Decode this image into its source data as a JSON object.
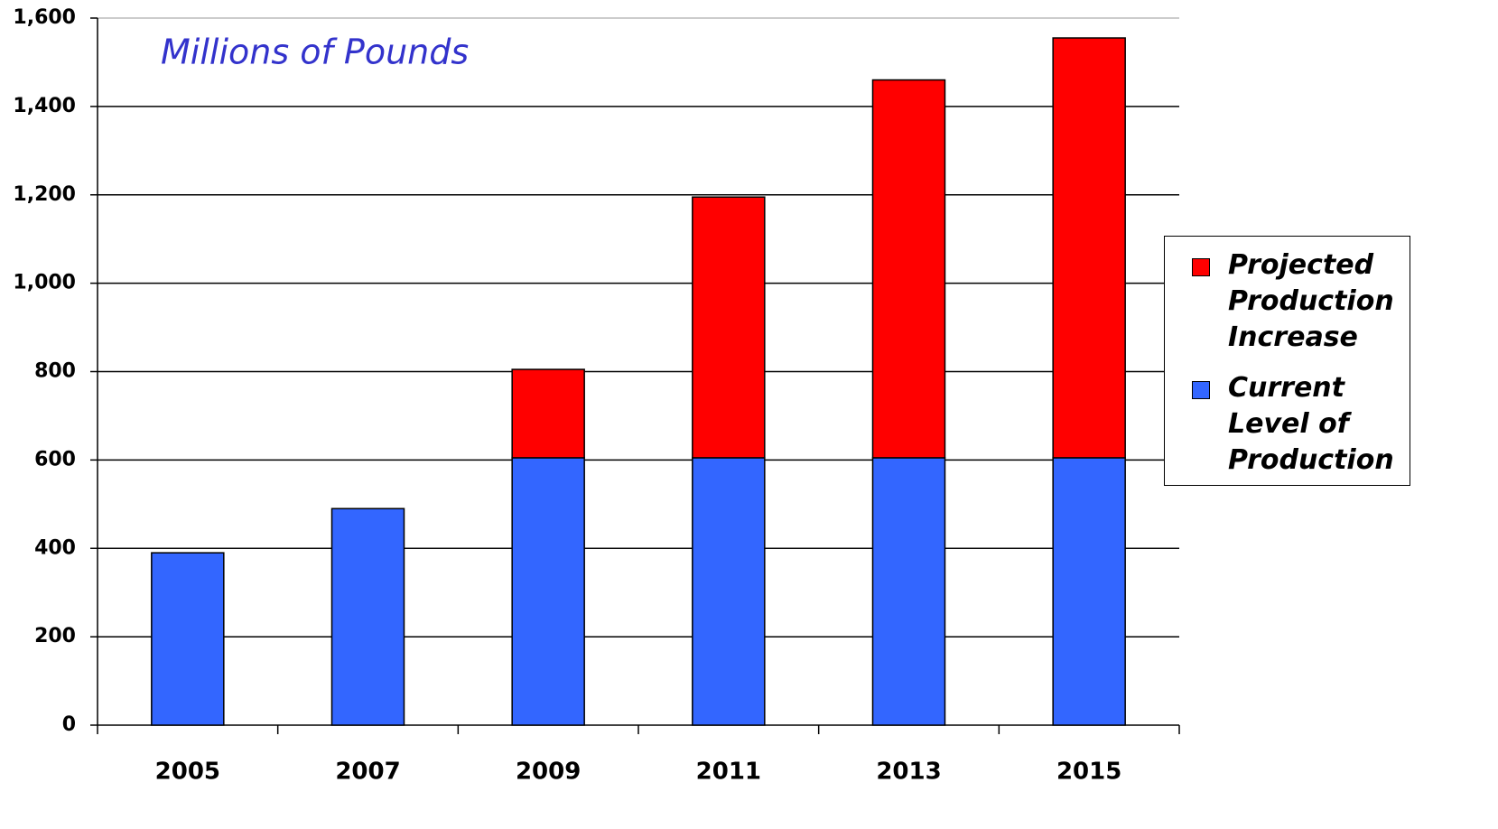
{
  "chart_data": {
    "type": "stacked-bar",
    "annotation": "Millions of Pounds",
    "categories": [
      "2005",
      "2007",
      "2009",
      "2011",
      "2013",
      "2015"
    ],
    "series": [
      {
        "name": "Current Level of Production",
        "color": "#3366ff",
        "values": [
          390,
          490,
          605,
          605,
          605,
          605
        ]
      },
      {
        "name": "Projected Production Increase",
        "color": "#ff0000",
        "values": [
          null,
          null,
          200,
          590,
          855,
          950
        ]
      }
    ],
    "ylim": [
      0,
      1600
    ],
    "yticks": [
      0,
      200,
      400,
      600,
      800,
      {
        "value": 1000,
        "label": "1,000"
      },
      {
        "value": 1200,
        "label": "1,200"
      },
      {
        "value": 1400,
        "label": "1,400"
      },
      {
        "value": 1600,
        "label": "1,600"
      }
    ],
    "grid": true,
    "legend": "right"
  }
}
